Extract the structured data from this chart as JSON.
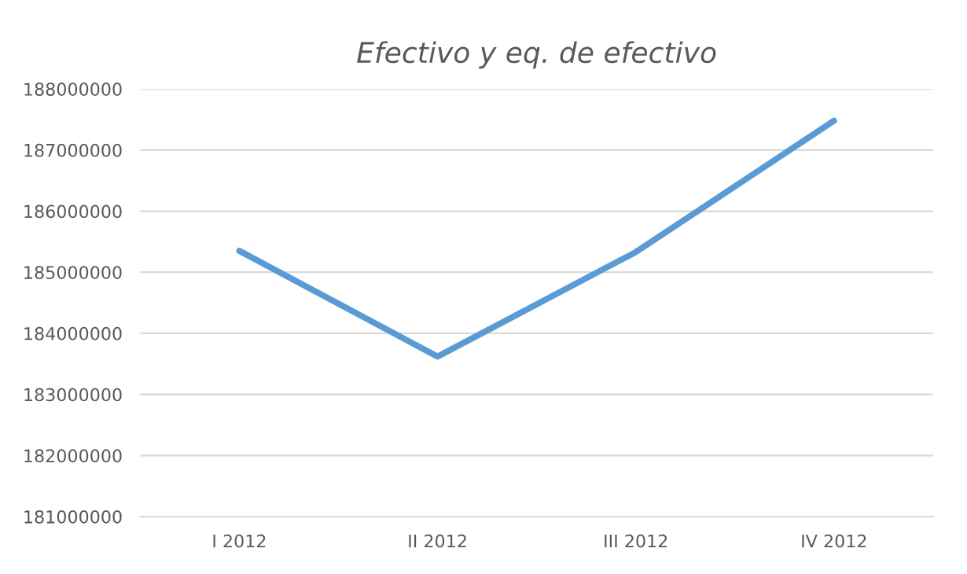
{
  "chart_data": {
    "type": "line",
    "title": "Efectivo y eq. de efectivo",
    "categories": [
      "I 2012",
      "II 2012",
      "III 2012",
      "IV 2012"
    ],
    "series": [
      {
        "color": "#5b9bd5",
        "values": [
          185350000,
          183620000,
          185330000,
          187480000
        ]
      }
    ],
    "ylim": [
      181000000,
      188000000
    ],
    "yticks": [
      181000000,
      182000000,
      183000000,
      184000000,
      185000000,
      186000000,
      187000000,
      188000000
    ],
    "grid": "y",
    "legend": false,
    "marker": "none",
    "line_style": "solid"
  }
}
